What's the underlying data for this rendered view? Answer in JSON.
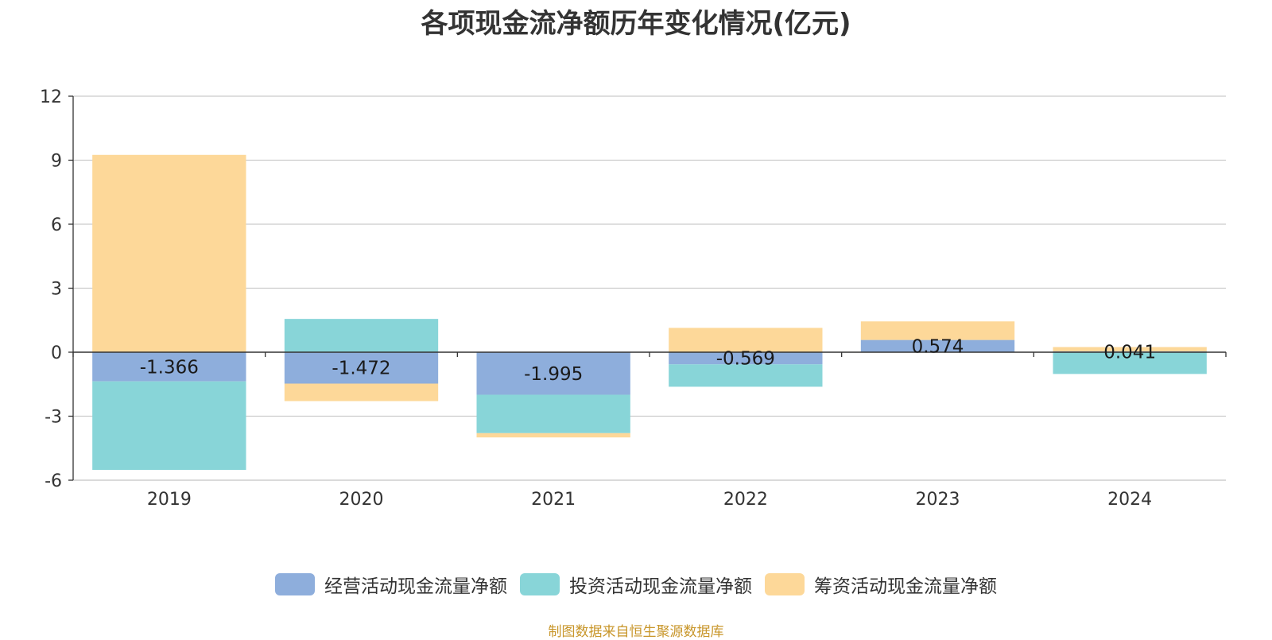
{
  "chart_data": {
    "type": "bar",
    "stacked": true,
    "title": "各项现金流净额历年变化情况(亿元)",
    "categories": [
      "2019",
      "2020",
      "2021",
      "2022",
      "2023",
      "2024"
    ],
    "series": [
      {
        "name": "经营活动现金流量净额",
        "color": "#8eaedc",
        "values": [
          -1.366,
          -1.472,
          -1.995,
          -0.569,
          0.574,
          0.041
        ]
      },
      {
        "name": "投资活动现金流量净额",
        "color": "#88d5d8",
        "values": [
          -4.15,
          1.56,
          -1.8,
          -1.05,
          0,
          -1.02
        ]
      },
      {
        "name": "筹资活动现金流量净额",
        "color": "#fdd899",
        "values": [
          9.25,
          -0.82,
          -0.2,
          1.14,
          0.87,
          0.2
        ]
      }
    ],
    "data_labels": [
      "-1.366",
      "-1.472",
      "-1.995",
      "-0.569",
      "0.574",
      "0.041"
    ],
    "ylim": [
      -6,
      12
    ],
    "yticks": [
      -6,
      -3,
      0,
      3,
      6,
      9,
      12
    ],
    "grid": true,
    "legend": "bottom"
  },
  "source_note": "制图数据来自恒生聚源数据库"
}
